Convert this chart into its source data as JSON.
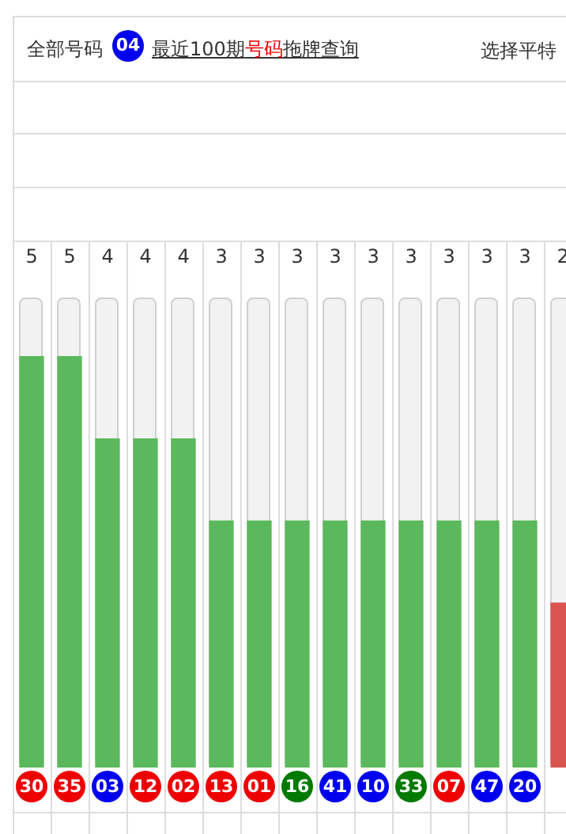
{
  "chart_data": {
    "type": "bar",
    "annotations": [
      "全部号码",
      "04",
      "最近100期",
      "号码",
      "拖牌查询",
      "选择平特"
    ],
    "categories": [
      "30",
      "35",
      "03",
      "12",
      "02",
      "13",
      "01",
      "16",
      "41",
      "10",
      "33",
      "07",
      "47",
      "20",
      null
    ],
    "values": [
      5,
      5,
      4,
      4,
      4,
      3,
      3,
      3,
      3,
      3,
      3,
      3,
      3,
      3,
      2
    ],
    "colors": [
      "#5cb85c",
      "#5cb85c",
      "#5cb85c",
      "#5cb85c",
      "#5cb85c",
      "#5cb85c",
      "#5cb85c",
      "#5cb85c",
      "#5cb85c",
      "#5cb85c",
      "#5cb85c",
      "#5cb85c",
      "#5cb85c",
      "#5cb85c",
      "#d9534f"
    ],
    "ylim": [
      0,
      5.7
    ],
    "data_labels": true,
    "tick_labels": "x"
  }
}
